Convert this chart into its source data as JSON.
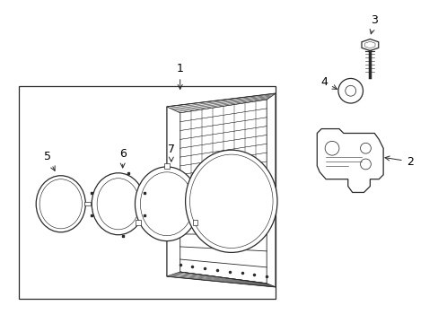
{
  "bg_color": "#ffffff",
  "line_color": "#2a2a2a",
  "fig_width": 4.89,
  "fig_height": 3.6,
  "dpi": 100,
  "label_fontsize": 9
}
